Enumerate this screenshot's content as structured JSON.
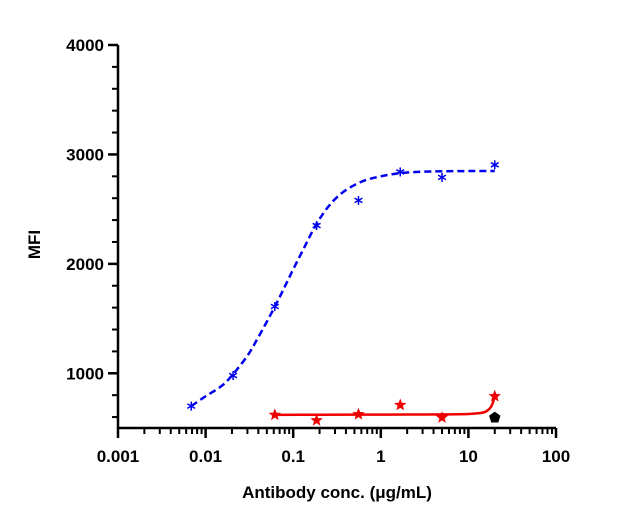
{
  "chart_data": {
    "type": "scatter",
    "xlabel": "Antibody conc. (μg/mL)",
    "ylabel": "MFI",
    "x_scale": "log",
    "xlim": [
      0.001,
      100
    ],
    "ylim": [
      500,
      4000
    ],
    "x_ticks": [
      0.001,
      0.01,
      0.1,
      1,
      10,
      100
    ],
    "x_tick_labels": [
      "0.001",
      "0.01",
      "0.1",
      "1",
      "10",
      "100"
    ],
    "y_ticks": [
      1000,
      2000,
      3000,
      4000
    ],
    "y_tick_labels": [
      "1000",
      "2000",
      "3000",
      "4000"
    ],
    "grid": false,
    "series": [
      {
        "marker": "asterisk",
        "color": "#0000ee",
        "line_style": "dashed",
        "x": [
          0.00686,
          0.0206,
          0.0617,
          0.185,
          0.556,
          1.667,
          5.0,
          20.0
        ],
        "y": [
          700,
          980,
          1610,
          2350,
          2580,
          2840,
          2790,
          2905
        ],
        "fit_curve": {
          "x": [
            0.00686,
            0.01,
            0.015,
            0.02,
            0.03,
            0.04,
            0.06,
            0.08,
            0.1,
            0.13,
            0.18,
            0.25,
            0.35,
            0.5,
            0.7,
            1.0,
            1.5,
            2.0,
            3.0,
            5.0,
            10.0,
            20.0
          ],
          "y": [
            700,
            790,
            880,
            980,
            1160,
            1330,
            1590,
            1790,
            1950,
            2130,
            2350,
            2520,
            2640,
            2720,
            2770,
            2800,
            2825,
            2835,
            2842,
            2846,
            2848,
            2849
          ]
        }
      },
      {
        "marker": "star",
        "color": "#ee0000",
        "line_style": "solid",
        "x": [
          0.0617,
          0.185,
          0.556,
          1.667,
          5.0,
          20.0
        ],
        "y": [
          620,
          570,
          625,
          710,
          595,
          790
        ],
        "fit_curve": {
          "x": [
            0.0617,
            0.2,
            0.5,
            1.0,
            2.0,
            5.0,
            10.0,
            14.0,
            16.0,
            18.0,
            19.0,
            20.0
          ],
          "y": [
            620,
            621,
            622,
            622,
            623,
            624,
            628,
            638,
            652,
            690,
            730,
            790
          ]
        }
      },
      {
        "marker": "pentagon",
        "color": "#000000",
        "line_style": "none",
        "x": [
          20.0
        ],
        "y": [
          595
        ]
      }
    ]
  }
}
